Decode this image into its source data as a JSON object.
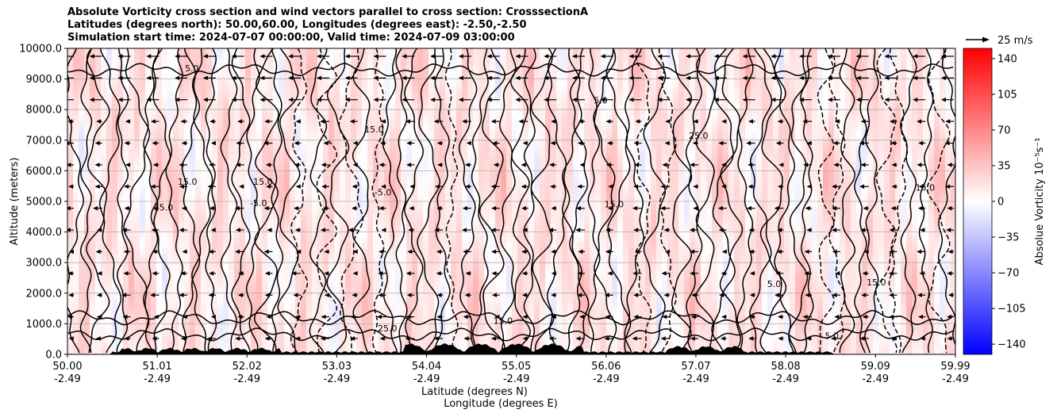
{
  "chart_data": {
    "type": "heatmap",
    "title": [
      "Absolute Vorticity cross section and wind vectors parallel to cross section: CrosssectionA",
      "Latitudes (degrees north): 50.00,60.00, Longitudes (degrees east): -2.50,-2.50",
      "Simulation start time: 2024-07-07 00:00:00, Valid time: 2024-07-09 03:00:00"
    ],
    "xlabel": "Latitude (degrees N)",
    "xlabel2": "Longitude (degrees E)",
    "ylabel": "Altitude (meters)",
    "xlim": [
      50.0,
      59.99
    ],
    "ylim": [
      0,
      10000
    ],
    "x_ticks": [
      {
        "lat": 50.0,
        "label": "50.00",
        "lon_label": "-2.49"
      },
      {
        "lat": 51.01,
        "label": "51.01",
        "lon_label": "-2.49"
      },
      {
        "lat": 52.02,
        "label": "52.02",
        "lon_label": "-2.49"
      },
      {
        "lat": 53.03,
        "label": "53.03",
        "lon_label": "-2.49"
      },
      {
        "lat": 54.04,
        "label": "54.04",
        "lon_label": "-2.49"
      },
      {
        "lat": 55.05,
        "label": "55.05",
        "lon_label": "-2.49"
      },
      {
        "lat": 56.06,
        "label": "56.06",
        "lon_label": "-2.49"
      },
      {
        "lat": 57.07,
        "label": "57.07",
        "lon_label": "-2.49"
      },
      {
        "lat": 58.08,
        "label": "58.08",
        "lon_label": "-2.49"
      },
      {
        "lat": 59.09,
        "label": "59.09",
        "lon_label": "-2.49"
      },
      {
        "lat": 59.99,
        "label": "59.99",
        "lon_label": "-2.49"
      }
    ],
    "y_ticks": [
      {
        "value": 0,
        "label": "0.0"
      },
      {
        "value": 1000,
        "label": "1000.0"
      },
      {
        "value": 2000,
        "label": "2000.0"
      },
      {
        "value": 3000,
        "label": "3000.0"
      },
      {
        "value": 4000,
        "label": "4000.0"
      },
      {
        "value": 5000,
        "label": "5000.0"
      },
      {
        "value": 6000,
        "label": "6000.0"
      },
      {
        "value": 7000,
        "label": "7000.0"
      },
      {
        "value": 8000,
        "label": "8000.0"
      },
      {
        "value": 9000,
        "label": "9000.0"
      },
      {
        "value": 10000,
        "label": "10000.0"
      }
    ],
    "grid": "horizontal",
    "colorbar": {
      "label": "Absolue Vorticity 10⁻⁵s⁻¹",
      "range": [
        -150,
        150
      ],
      "ticks": [
        {
          "value": 140,
          "label": "140"
        },
        {
          "value": 105,
          "label": "105"
        },
        {
          "value": 70,
          "label": "70"
        },
        {
          "value": 35,
          "label": "35"
        },
        {
          "value": 0,
          "label": "0"
        },
        {
          "value": -35,
          "label": "−35"
        },
        {
          "value": -70,
          "label": "−70"
        },
        {
          "value": -105,
          "label": "−105"
        },
        {
          "value": -140,
          "label": "−140"
        }
      ],
      "colormap": "bwr",
      "color_low": "#0000ff",
      "color_mid": "#ffffff",
      "color_high": "#ff0000"
    },
    "quiver_key": {
      "label": "25 m/s",
      "value": 25
    },
    "wind_direction": "toward lower latitude (southward) at most levels",
    "contour_levels": [
      -5.0,
      5.0,
      15.0,
      25.0,
      35.0
    ],
    "contour_labels": [
      {
        "text": "15.0",
        "lat": 51.35,
        "alt": 5550
      },
      {
        "text": "15.0",
        "lat": 51.08,
        "alt": 4700
      },
      {
        "text": "15.0",
        "lat": 52.2,
        "alt": 5550
      },
      {
        "text": "15.0",
        "lat": 53.45,
        "alt": 7250
      },
      {
        "text": "15.0",
        "lat": 54.9,
        "alt": 1000
      },
      {
        "text": "15.0",
        "lat": 56.15,
        "alt": 4800
      },
      {
        "text": "15.0",
        "lat": 59.65,
        "alt": 5350
      },
      {
        "text": "15.0",
        "lat": 59.1,
        "alt": 2250
      },
      {
        "text": "5.0",
        "lat": 56.0,
        "alt": 8200
      },
      {
        "text": "5.0",
        "lat": 57.95,
        "alt": 2200
      },
      {
        "text": "5.0",
        "lat": 58.6,
        "alt": 500
      },
      {
        "text": "5.0",
        "lat": 51.4,
        "alt": 9250
      },
      {
        "text": "25.0",
        "lat": 53.6,
        "alt": 750
      },
      {
        "text": "25.0",
        "lat": 57.1,
        "alt": 7050
      },
      {
        "text": "-5.0",
        "lat": 53.55,
        "alt": 5200
      },
      {
        "text": "-5.0",
        "lat": 52.15,
        "alt": 4850
      }
    ],
    "terrain": "black filled orography along the bottom, highest near 54.5-55.6 N and 56.8-57.5 N"
  }
}
